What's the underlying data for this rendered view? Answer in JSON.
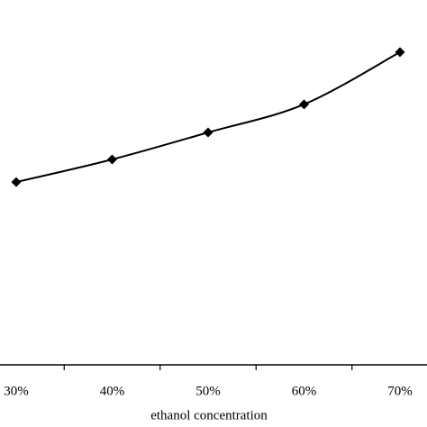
{
  "chart_data": {
    "type": "line",
    "x_label": "ethanol concentration",
    "categories": [
      "30%",
      "40%",
      "50%",
      "60%",
      "70%"
    ],
    "values": [
      50.1,
      56.3,
      63.7,
      71.4,
      85.7
    ],
    "color": "#000000",
    "ylim": [
      0,
      100
    ]
  }
}
